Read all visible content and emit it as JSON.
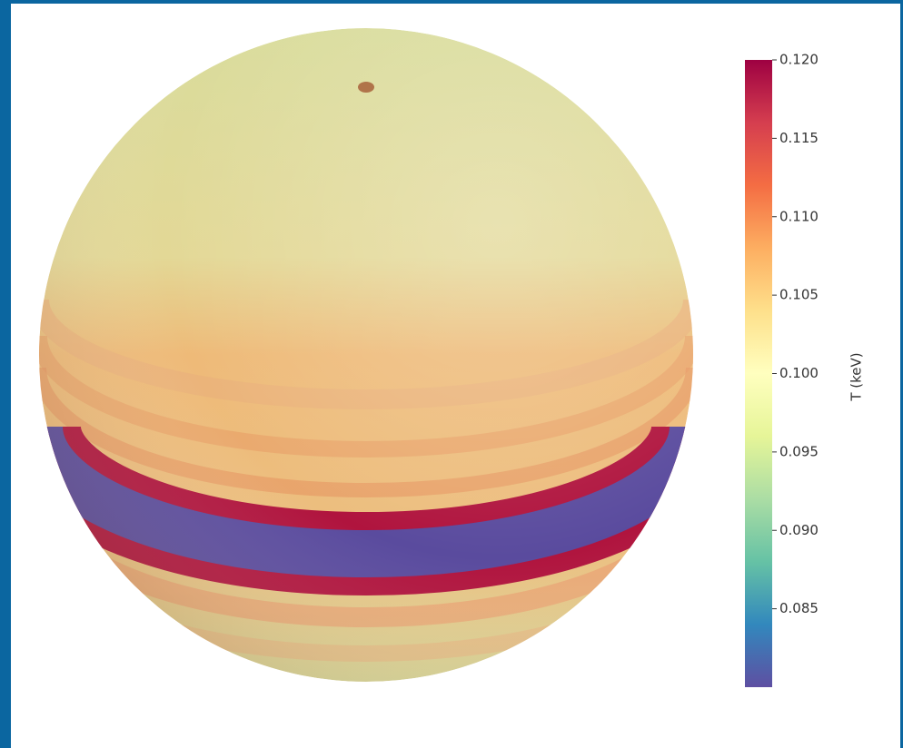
{
  "chart_data": {
    "type": "surface",
    "colorbar_label": "T (keV)",
    "colormap": [
      "#5e4fa2",
      "#3288bd",
      "#66c2a5",
      "#abdda4",
      "#e6f598",
      "#ffffbf",
      "#fee08b",
      "#fdae61",
      "#f46d43",
      "#d53e4f",
      "#9e0142"
    ],
    "ylim": [
      0.08,
      0.12
    ],
    "yticks": [
      0.085,
      {
        "value": 0.09,
        "label": "0.090"
      },
      0.095,
      {
        "value": 0.1,
        "label": "0.100"
      },
      0.105,
      {
        "value": 0.11,
        "label": "0.110"
      },
      0.115,
      {
        "value": 0.12,
        "label": "0.120"
      }
    ]
  }
}
